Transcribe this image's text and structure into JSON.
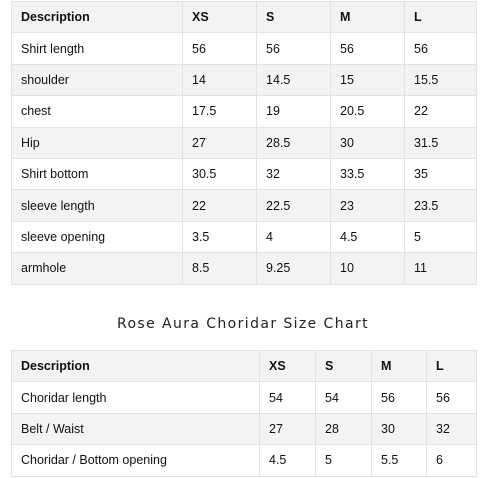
{
  "shirt_table": {
    "headers": [
      "Description",
      "XS",
      "S",
      "M",
      "L"
    ],
    "rows": [
      [
        "Shirt length",
        "56",
        "56",
        "56",
        "56"
      ],
      [
        "shoulder",
        "14",
        "14.5",
        "15",
        "15.5"
      ],
      [
        "chest",
        "17.5",
        "19",
        "20.5",
        "22"
      ],
      [
        "Hip",
        "27",
        "28.5",
        "30",
        "31.5"
      ],
      [
        "Shirt bottom",
        "30.5",
        "32",
        "33.5",
        "35"
      ],
      [
        "sleeve length",
        "22",
        "22.5",
        "23",
        "23.5"
      ],
      [
        "sleeve opening",
        "3.5",
        "4",
        "4.5",
        "5"
      ],
      [
        "armhole",
        "8.5",
        "9.25",
        "10",
        "11"
      ]
    ]
  },
  "choridar_title": "Rose Aura Choridar Size Chart",
  "choridar_table": {
    "headers": [
      "Description",
      "XS",
      "S",
      "M",
      "L"
    ],
    "rows": [
      [
        "Choridar length",
        "54",
        "54",
        "56",
        "56"
      ],
      [
        "Belt / Waist",
        "27",
        "28",
        "30",
        "32"
      ],
      [
        "Choridar / Bottom opening",
        "4.5",
        "5",
        "5.5",
        "6"
      ]
    ]
  }
}
